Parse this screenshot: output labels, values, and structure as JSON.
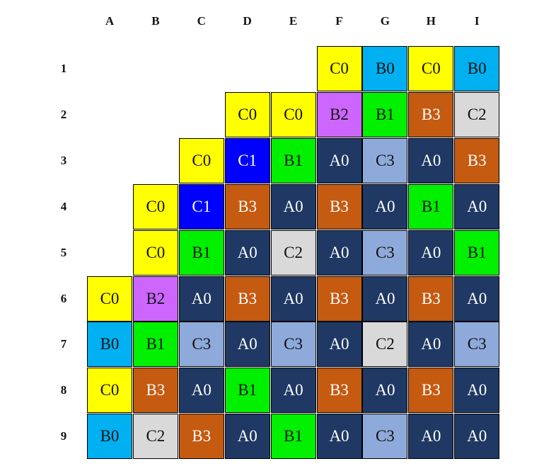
{
  "columns": [
    "A",
    "B",
    "C",
    "D",
    "E",
    "F",
    "G",
    "H",
    "I"
  ],
  "rows": [
    "1",
    "2",
    "3",
    "4",
    "5",
    "6",
    "7",
    "8",
    "9"
  ],
  "colors": {
    "A0": {
      "bg": "#1f3864",
      "fg": "#ffffff"
    },
    "B0": {
      "bg": "#00b0f0",
      "fg": "#111111"
    },
    "B1": {
      "bg": "#00f000",
      "fg": "#111111"
    },
    "B2": {
      "bg": "#cc66ff",
      "fg": "#111111"
    },
    "B3": {
      "bg": "#c55a11",
      "fg": "#ffffff"
    },
    "C0": {
      "bg": "#ffff00",
      "fg": "#111111"
    },
    "C1": {
      "bg": "#0000ff",
      "fg": "#ffffff"
    },
    "C2": {
      "bg": "#d9d9d9",
      "fg": "#111111"
    },
    "C3": {
      "bg": "#8eaadb",
      "fg": "#111111"
    }
  },
  "cells": [
    [
      "",
      "",
      "",
      "",
      "",
      "C0",
      "B0",
      "C0",
      "B0"
    ],
    [
      "",
      "",
      "",
      "C0",
      "C0",
      "B2",
      "B1",
      "B3",
      "C2"
    ],
    [
      "",
      "",
      "C0",
      "C1",
      "B1",
      "A0",
      "C3",
      "A0",
      "B3"
    ],
    [
      "",
      "C0",
      "C1",
      "B3",
      "A0",
      "B3",
      "A0",
      "B1",
      "A0"
    ],
    [
      "",
      "C0",
      "B1",
      "A0",
      "C2",
      "A0",
      "C3",
      "A0",
      "B1"
    ],
    [
      "C0",
      "B2",
      "A0",
      "B3",
      "A0",
      "B3",
      "A0",
      "B3",
      "A0"
    ],
    [
      "B0",
      "B1",
      "C3",
      "A0",
      "C3",
      "A0",
      "C2",
      "A0",
      "C3"
    ],
    [
      "C0",
      "B3",
      "A0",
      "B1",
      "A0",
      "B3",
      "A0",
      "B3",
      "A0"
    ],
    [
      "B0",
      "C2",
      "B3",
      "A0",
      "B1",
      "A0",
      "C3",
      "A0",
      "A0"
    ]
  ]
}
